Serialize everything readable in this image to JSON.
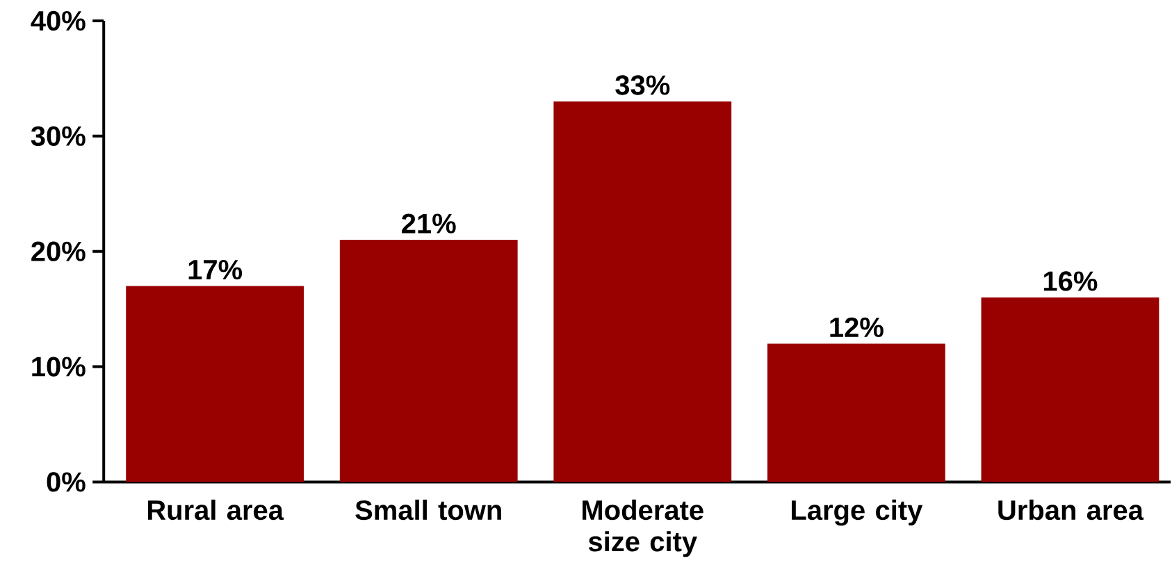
{
  "chart_data": {
    "type": "bar",
    "categories": [
      "Rural area",
      "Small town",
      "Moderate size city",
      "Large city",
      "Urban area"
    ],
    "values": [
      17,
      21,
      33,
      12,
      16
    ],
    "value_labels": [
      "17%",
      "21%",
      "33%",
      "12%",
      "16%"
    ],
    "color": "#990000",
    "ylim": [
      0,
      40
    ],
    "yticks": [
      {
        "value": 0,
        "label": "0%"
      },
      {
        "value": 10,
        "label": "10%"
      },
      {
        "value": 20,
        "label": "20%"
      },
      {
        "value": 30,
        "label": "30%"
      },
      {
        "value": 40,
        "label": "40%"
      }
    ],
    "grid": false
  }
}
